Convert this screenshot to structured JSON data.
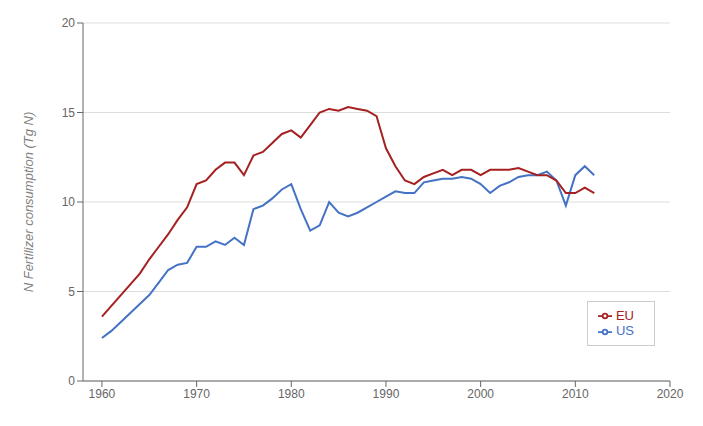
{
  "chart_data": {
    "type": "line",
    "y_label": "N Fertilizer consumption (Tg N)",
    "x": [
      1960,
      1961,
      1962,
      1963,
      1964,
      1965,
      1966,
      1967,
      1968,
      1969,
      1970,
      1971,
      1972,
      1973,
      1974,
      1975,
      1976,
      1977,
      1978,
      1979,
      1980,
      1981,
      1982,
      1983,
      1984,
      1985,
      1986,
      1987,
      1988,
      1989,
      1990,
      1991,
      1992,
      1993,
      1994,
      1995,
      1996,
      1997,
      1998,
      1999,
      2000,
      2001,
      2002,
      2003,
      2004,
      2005,
      2006,
      2007,
      2008,
      2009,
      2010,
      2011,
      2012
    ],
    "series": [
      {
        "name": "US",
        "color": "#4472C4",
        "values": [
          2.4,
          2.8,
          3.3,
          3.8,
          4.3,
          4.8,
          5.5,
          6.2,
          6.5,
          6.6,
          7.5,
          7.5,
          7.8,
          7.6,
          8.0,
          7.6,
          9.6,
          9.8,
          10.2,
          10.7,
          11.0,
          9.6,
          8.4,
          8.7,
          10.0,
          9.4,
          9.2,
          9.4,
          9.7,
          10.0,
          10.3,
          10.6,
          10.5,
          10.5,
          11.1,
          11.2,
          11.3,
          11.3,
          11.4,
          11.3,
          11.0,
          10.5,
          10.9,
          11.1,
          11.4,
          11.5,
          11.5,
          11.7,
          11.2,
          9.8,
          11.5,
          12.0,
          11.5
        ]
      },
      {
        "name": "EU",
        "color": "#A52020",
        "values": [
          3.6,
          4.2,
          4.8,
          5.4,
          6.0,
          6.8,
          7.5,
          8.2,
          9.0,
          9.7,
          11.0,
          11.2,
          11.8,
          12.2,
          12.2,
          11.5,
          12.6,
          12.8,
          13.3,
          13.8,
          14.0,
          13.6,
          14.3,
          15.0,
          15.2,
          15.1,
          15.3,
          15.2,
          15.1,
          14.8,
          13.0,
          12.0,
          11.2,
          11.0,
          11.4,
          11.6,
          11.8,
          11.5,
          11.8,
          11.8,
          11.5,
          11.8,
          11.8,
          11.8,
          11.9,
          11.7,
          11.5,
          11.5,
          11.2,
          10.5,
          10.5,
          10.8,
          10.5
        ]
      }
    ],
    "xlim": [
      1958,
      2020
    ],
    "xticks": [
      1960,
      1970,
      1980,
      1990,
      2000,
      2010,
      2020
    ],
    "ylim": [
      0,
      20
    ],
    "yticks": [
      0,
      5,
      10,
      15,
      20
    ],
    "grid": true,
    "legend": "lower right"
  }
}
